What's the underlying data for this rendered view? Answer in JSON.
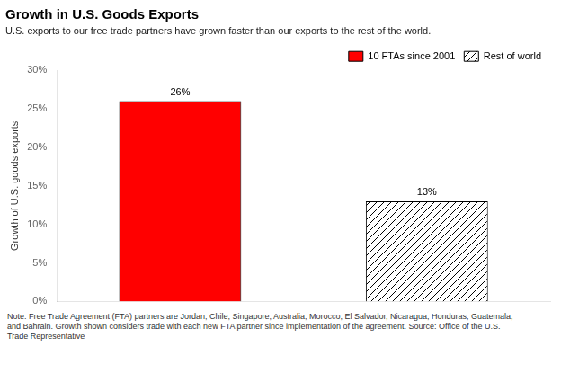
{
  "chart_data": {
    "type": "bar",
    "title": "Growth in U.S. Goods Exports",
    "subtitle": "U.S. exports to our free trade partners have grown faster than our exports to the rest of the world.",
    "ylabel": "Growth of U.S. goods exports",
    "note": "Note: Free Trade Agreement (FTA) partners are Jordan, Chile, Singapore, Australia, Morocco, El Salvador, Nicaragua, Honduras, Guatemala,\nand Bahrain.  Growth shown considers trade with each new FTA partner since implementation of the agreement.  Source: Office of the U.S.\nTrade Representative",
    "categories": [
      "10 FTAs since 2001",
      "Rest of world"
    ],
    "values": [
      26,
      13
    ],
    "value_labels": [
      "26%",
      "13%"
    ],
    "colors": [
      "#ff0000",
      "#ffffff"
    ],
    "ylim": [
      0,
      30
    ],
    "yticks": [
      {
        "value": 0,
        "label": "0%"
      },
      {
        "value": 5,
        "label": "5%"
      },
      {
        "value": 10,
        "label": "10%"
      },
      {
        "value": 15,
        "label": "15%"
      },
      {
        "value": 20,
        "label": "20%"
      },
      {
        "value": 25,
        "label": "25%"
      },
      {
        "value": 30,
        "label": "30%"
      }
    ],
    "grid": false,
    "legend": "upper right",
    "data_labels": true,
    "tick_labels": "y"
  }
}
